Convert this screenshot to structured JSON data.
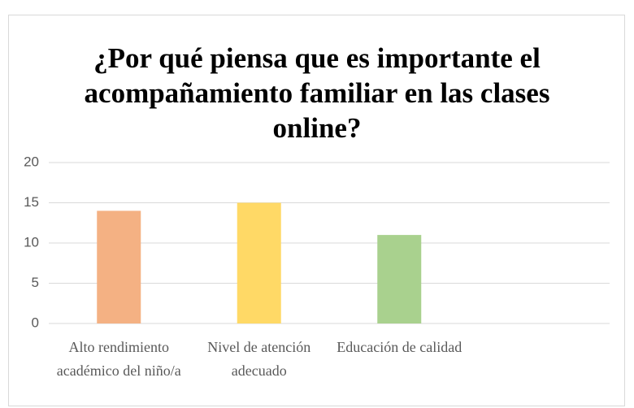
{
  "chart_data": {
    "type": "bar",
    "title": "¿Por qué piensa que es importante el acompañamiento familiar en las clases online?",
    "categories": [
      "Alto rendimiento académico del niño/a",
      "Nivel de atención adecuado",
      "Educación de calidad",
      null
    ],
    "values": [
      14,
      15,
      11,
      null
    ],
    "colors": [
      "#f4b183",
      "#ffd966",
      "#a9d18e"
    ],
    "ylim": [
      0,
      20
    ],
    "yticks": [
      0,
      5,
      10,
      15,
      20
    ],
    "grid": true
  }
}
